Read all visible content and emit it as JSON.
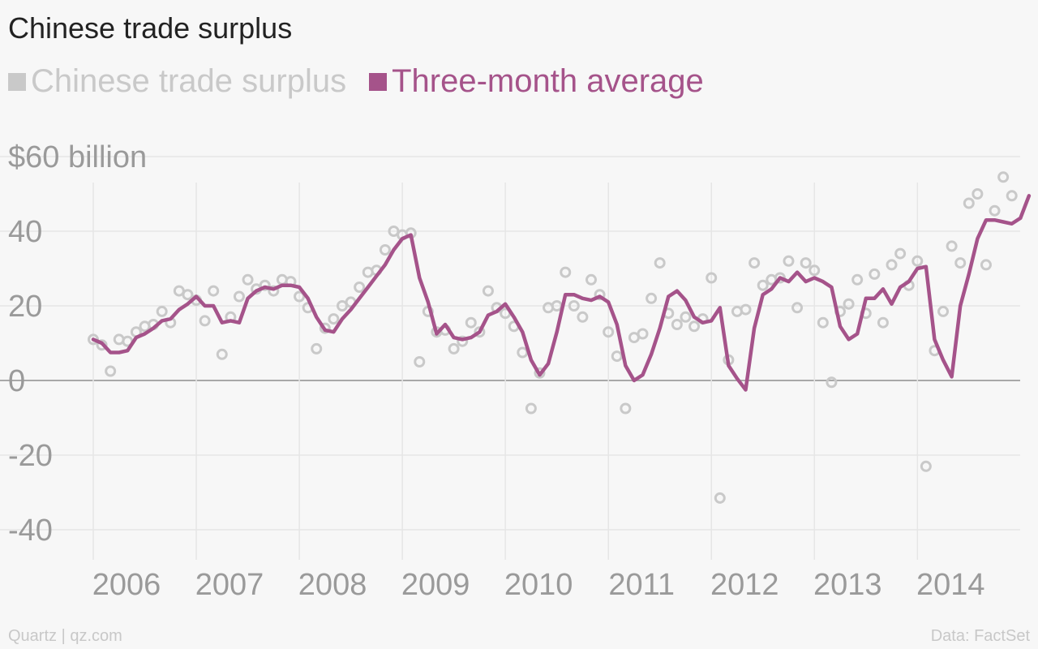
{
  "title": "Chinese trade surplus",
  "legend": [
    {
      "label": "Chinese trade surplus",
      "color": "#c9c9c9"
    },
    {
      "label": "Three-month average",
      "color": "#a5538a"
    }
  ],
  "footer": {
    "source_left": "Quartz | qz.com",
    "source_right": "Data: FactSet"
  },
  "chart_data": {
    "type": "line",
    "title": "Chinese trade surplus",
    "y_tick_labels": [
      "$60 billion",
      "40",
      "20",
      "0",
      "-20",
      "-40"
    ],
    "y_tick_values": [
      60,
      40,
      20,
      0,
      -20,
      -40
    ],
    "ylim": [
      -47,
      66
    ],
    "xlim": [
      2006.0,
      2014.95
    ],
    "x_tick_labels": [
      "2006",
      "2007",
      "2008",
      "2009",
      "2010",
      "2011",
      "2012",
      "2013",
      "2014"
    ],
    "x_tick_values": [
      2006,
      2007,
      2008,
      2009,
      2010,
      2011,
      2012,
      2013,
      2014
    ],
    "grid": true,
    "legend_position": "top-left",
    "series": [
      {
        "name": "Chinese trade surplus",
        "style": "scatter-open-circle",
        "color": "#c9c9c9",
        "x_start": 2006.0,
        "x_step": 0.08333,
        "values": [
          11,
          9.5,
          2.5,
          11,
          10.5,
          13,
          14.5,
          15,
          18.5,
          15.5,
          24,
          23,
          21.5,
          16,
          24,
          7,
          17,
          22.5,
          27,
          24.5,
          25.5,
          24,
          27,
          26.5,
          22.5,
          19.5,
          8.5,
          14,
          16.5,
          20,
          21,
          25,
          29,
          29.5,
          35,
          40,
          39,
          39.5,
          5,
          18.5,
          13,
          13.5,
          8.5,
          10.5,
          15.5,
          13,
          24,
          19.5,
          18,
          14.5,
          7.5,
          -7.5,
          2,
          19.5,
          20,
          29,
          20,
          17,
          27,
          23,
          13,
          6.5,
          -7.5,
          11.5,
          12.5,
          22,
          31.5,
          18,
          15,
          17,
          14.5,
          16.5,
          27.5,
          -31.5,
          5.5,
          18.5,
          19,
          31.5,
          25.5,
          27,
          27.5,
          32,
          19.5,
          31.5,
          29.5,
          15.5,
          -0.5,
          18.5,
          20.5,
          27,
          18,
          28.5,
          15.5,
          31,
          34,
          25.5,
          32,
          -23,
          8,
          18.5,
          36,
          31.5,
          47.5,
          50,
          31,
          45.5,
          54.5,
          49.5
        ]
      },
      {
        "name": "Three-month average",
        "style": "line",
        "color": "#a5538a",
        "x_start": 2006.0,
        "x_step": 0.08333,
        "values": [
          11,
          10,
          7.5,
          7.5,
          8,
          11.5,
          12.5,
          14,
          16,
          16.5,
          19,
          20.5,
          22.5,
          20,
          20,
          15.5,
          16,
          15.5,
          22,
          24,
          25,
          24.5,
          25.5,
          25.5,
          25,
          22,
          17,
          13.5,
          13,
          16.5,
          19,
          22,
          25,
          28,
          31,
          35,
          38,
          39,
          27.5,
          21,
          12.5,
          15,
          11.5,
          11,
          11.5,
          13,
          17.5,
          18.5,
          20.5,
          17,
          13,
          5.5,
          1.5,
          4.5,
          13,
          23,
          23,
          22,
          21.5,
          22.5,
          21,
          15,
          4,
          0,
          1.5,
          7,
          14,
          22.5,
          24,
          21.5,
          17,
          15.5,
          16,
          19.5,
          4,
          0.5,
          -2.5,
          14,
          23,
          24.5,
          27.5,
          26.5,
          29,
          26.5,
          27.5,
          26.5,
          25,
          14.5,
          11,
          12.5,
          22,
          22,
          24.5,
          20.5,
          25,
          26.5,
          30,
          30.5,
          11,
          5.5,
          1,
          20,
          28.5,
          38,
          43,
          43,
          42.5,
          42,
          43.5,
          49.5
        ]
      }
    ]
  }
}
